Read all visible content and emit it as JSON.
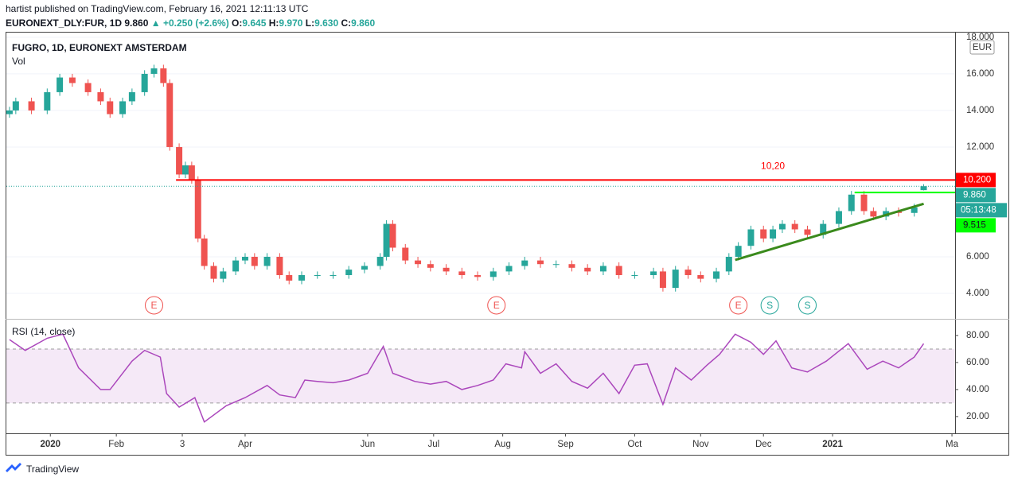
{
  "header": {
    "publisher": "hartist published on TradingView.com, February 16, 2021 12:11:13 UTC",
    "symbol": "EURONEXT_DLY:FUR, 1D",
    "last": "9.860",
    "change": "▲ +0.250 (+2.6%)",
    "ohlc": [
      {
        "key": "O:",
        "value": "9.645"
      },
      {
        "key": "H:",
        "value": "9.970"
      },
      {
        "key": "L:",
        "value": "9.630"
      },
      {
        "key": "C:",
        "value": "9.860"
      }
    ]
  },
  "footer": "TradingView",
  "chart_data": [
    {
      "type": "candlestick",
      "title": "FUGRO, 1D, EURONEXT AMSTERDAM",
      "subtitle": "Vol",
      "currency": "EUR",
      "up_color": "#26a69a",
      "down_color": "#ef5350",
      "x": [
        1,
        3,
        8,
        13,
        17,
        21,
        26,
        30,
        33,
        37,
        40,
        44,
        47,
        50,
        52,
        55,
        57,
        59,
        61,
        63,
        66,
        69,
        73,
        76,
        79,
        83,
        87,
        90,
        94,
        99,
        104,
        109,
        114,
        119,
        121,
        123,
        127,
        131,
        135,
        140,
        145,
        150,
        155,
        160,
        165,
        170,
        175,
        180,
        185,
        190,
        195,
        200,
        206,
        209,
        213,
        217,
        221,
        226,
        230,
        233,
        237,
        241,
        244,
        247,
        251,
        255,
        260,
        265,
        269,
        273,
        276,
        280,
        284,
        289,
        292
      ],
      "open": [
        13.8,
        14.0,
        14.5,
        14.0,
        15.0,
        15.8,
        15.5,
        15.0,
        14.5,
        13.8,
        14.5,
        15.0,
        16.0,
        16.3,
        15.5,
        12.0,
        10.5,
        11.0,
        10.2,
        7.0,
        5.5,
        4.8,
        5.2,
        5.8,
        6.0,
        5.5,
        6.0,
        5.0,
        4.7,
        5.0,
        5.0,
        5.0,
        5.3,
        5.5,
        6.0,
        7.8,
        6.5,
        5.8,
        5.6,
        5.4,
        5.2,
        5.0,
        4.9,
        5.2,
        5.5,
        5.8,
        5.6,
        5.6,
        5.4,
        5.2,
        5.5,
        5.0,
        5.0,
        5.2,
        4.3,
        5.3,
        5.0,
        4.8,
        5.2,
        6.0,
        6.6,
        7.5,
        7.0,
        7.5,
        7.8,
        7.5,
        7.2,
        7.8,
        8.5,
        9.4,
        8.5,
        8.2,
        8.5,
        8.4,
        9.645
      ],
      "high": [
        14.2,
        14.7,
        14.7,
        15.2,
        16.0,
        16.0,
        15.7,
        15.2,
        14.7,
        14.7,
        15.2,
        16.2,
        16.5,
        16.5,
        15.7,
        12.2,
        11.2,
        11.2,
        10.4,
        7.2,
        5.7,
        5.4,
        6.0,
        6.2,
        6.2,
        6.2,
        6.2,
        5.2,
        5.2,
        5.2,
        5.2,
        5.5,
        5.7,
        6.2,
        8.0,
        8.0,
        6.7,
        6.0,
        5.8,
        5.6,
        5.4,
        5.2,
        5.4,
        5.7,
        6.0,
        6.0,
        5.8,
        5.8,
        5.6,
        5.7,
        5.7,
        5.2,
        5.4,
        5.4,
        5.5,
        5.5,
        5.2,
        5.4,
        6.2,
        6.8,
        7.7,
        7.7,
        7.7,
        8.0,
        8.0,
        7.7,
        8.0,
        8.7,
        9.6,
        9.6,
        8.7,
        8.7,
        8.7,
        8.9,
        9.97
      ],
      "low": [
        13.6,
        13.8,
        13.8,
        13.8,
        14.8,
        15.3,
        14.8,
        14.3,
        13.6,
        13.6,
        14.3,
        14.8,
        15.8,
        15.3,
        11.8,
        10.3,
        10.3,
        10.0,
        6.8,
        5.3,
        4.6,
        4.6,
        5.0,
        5.6,
        5.3,
        5.3,
        4.8,
        4.5,
        4.5,
        4.8,
        4.8,
        4.8,
        5.1,
        5.3,
        5.8,
        6.3,
        5.6,
        5.4,
        5.2,
        5.0,
        4.8,
        4.7,
        4.7,
        5.0,
        5.3,
        5.4,
        5.4,
        5.2,
        5.0,
        5.0,
        4.8,
        4.8,
        4.8,
        4.1,
        4.1,
        4.8,
        4.6,
        4.6,
        5.0,
        5.8,
        6.4,
        6.8,
        6.8,
        7.3,
        7.3,
        7.0,
        7.0,
        7.6,
        8.3,
        8.3,
        8.0,
        8.0,
        8.2,
        8.2,
        9.63
      ],
      "close": [
        14.0,
        14.5,
        14.0,
        15.0,
        15.8,
        15.5,
        15.0,
        14.5,
        13.8,
        14.5,
        15.0,
        16.0,
        16.3,
        15.5,
        12.0,
        10.5,
        11.0,
        10.2,
        7.0,
        5.5,
        4.8,
        5.2,
        5.8,
        6.0,
        5.5,
        6.0,
        5.0,
        4.7,
        5.0,
        5.0,
        5.0,
        5.3,
        5.5,
        6.0,
        7.8,
        6.5,
        5.8,
        5.6,
        5.4,
        5.2,
        5.0,
        4.9,
        5.2,
        5.5,
        5.8,
        5.6,
        5.6,
        5.4,
        5.2,
        5.5,
        5.0,
        5.0,
        5.2,
        4.3,
        5.3,
        5.0,
        4.8,
        5.2,
        6.0,
        6.6,
        7.5,
        7.0,
        7.5,
        7.8,
        7.5,
        7.2,
        7.8,
        8.5,
        9.4,
        8.5,
        8.2,
        8.5,
        8.4,
        8.7,
        9.86
      ],
      "xlim": [
        0,
        302
      ],
      "ylim": [
        2.61,
        18.3
      ],
      "yticks": [
        {
          "value": 4,
          "label": "4.000"
        },
        {
          "value": 6,
          "label": "6.000"
        },
        {
          "value": 12,
          "label": "12.000"
        },
        {
          "value": 14,
          "label": "14.000"
        },
        {
          "value": 16,
          "label": "16.000"
        },
        {
          "value": 18,
          "label": "18.000"
        }
      ],
      "xticks": [
        {
          "value": 14,
          "label": "2020"
        },
        {
          "value": 35,
          "label": "Feb"
        },
        {
          "value": 56,
          "label": "3"
        },
        {
          "value": 76,
          "label": "Apr"
        },
        {
          "value": 115,
          "label": "Jun"
        },
        {
          "value": 136,
          "label": "Jul"
        },
        {
          "value": 158,
          "label": "Aug"
        },
        {
          "value": 178,
          "label": "Sep"
        },
        {
          "value": 200,
          "label": "Oct"
        },
        {
          "value": 221,
          "label": "Nov"
        },
        {
          "value": 241,
          "label": "Dec"
        },
        {
          "value": 263,
          "label": "2021"
        },
        {
          "value": 301,
          "label": "Ma"
        }
      ],
      "price_lines": [
        {
          "value": 10.2,
          "label": "10.200",
          "color": "#ff0000",
          "text_color": "#ffffff",
          "x_start": 54,
          "style": "solid"
        },
        {
          "value": 9.86,
          "label": "9.860",
          "color": "#26a69a",
          "text_color": "#ffffff",
          "x_start": 0,
          "style": "dotted"
        },
        {
          "value": 9.515,
          "label": "9.515",
          "color": "#00ff00",
          "text_color": "#131722",
          "x_start": 270,
          "style": "solid"
        }
      ],
      "countdown": "05:13:48",
      "annotation": {
        "text": "10,20",
        "x": 244,
        "y": 10.2,
        "color": "#ff0000"
      },
      "trendline": {
        "x": [
          232,
          292
        ],
        "y": [
          5.83,
          8.9
        ],
        "color": "#3a8a1c"
      },
      "events": [
        {
          "x": 47,
          "label": "E"
        },
        {
          "x": 156,
          "label": "E"
        },
        {
          "x": 233,
          "label": "E"
        },
        {
          "x": 243,
          "label": "S"
        },
        {
          "x": 255,
          "label": "S"
        }
      ]
    },
    {
      "type": "line",
      "title": "RSI (14, close)",
      "color": "#ab47bc",
      "bands": [
        30,
        70
      ],
      "series": [
        {
          "name": "RSI (14, close)",
          "color": "#ab47bc",
          "x": [
            1,
            6,
            13,
            18,
            23,
            30,
            33,
            40,
            44,
            49,
            51,
            55,
            60,
            63,
            70,
            76,
            83,
            87,
            92,
            95,
            99,
            104,
            109,
            115,
            120,
            123,
            130,
            135,
            140,
            145,
            150,
            155,
            159,
            164,
            165,
            170,
            175,
            180,
            185,
            190,
            195,
            200,
            204,
            209,
            213,
            218,
            223,
            227,
            232,
            237,
            241,
            245,
            250,
            255,
            261,
            268,
            274,
            279,
            284,
            289,
            292
          ],
          "values": [
            77,
            69,
            78,
            81,
            56,
            40,
            40,
            61,
            69,
            64,
            37,
            27,
            34,
            16,
            28,
            34,
            43,
            36,
            34,
            47,
            46,
            45,
            47,
            52,
            72,
            52,
            46,
            44,
            46,
            40,
            43,
            47,
            59,
            56,
            68,
            52,
            59,
            46,
            41,
            52,
            37,
            58,
            59,
            29,
            56,
            47,
            58,
            66,
            81,
            75,
            66,
            76,
            56,
            53,
            61,
            74,
            55,
            61,
            56,
            64,
            74
          ]
        }
      ],
      "xlim": [
        0,
        302
      ],
      "ylim": [
        7.6,
        88.8
      ],
      "yticks": [
        {
          "value": 20,
          "label": "20.00"
        },
        {
          "value": 40,
          "label": "40.00"
        },
        {
          "value": 60,
          "label": "60.00"
        },
        {
          "value": 80,
          "label": "80.00"
        }
      ]
    }
  ]
}
